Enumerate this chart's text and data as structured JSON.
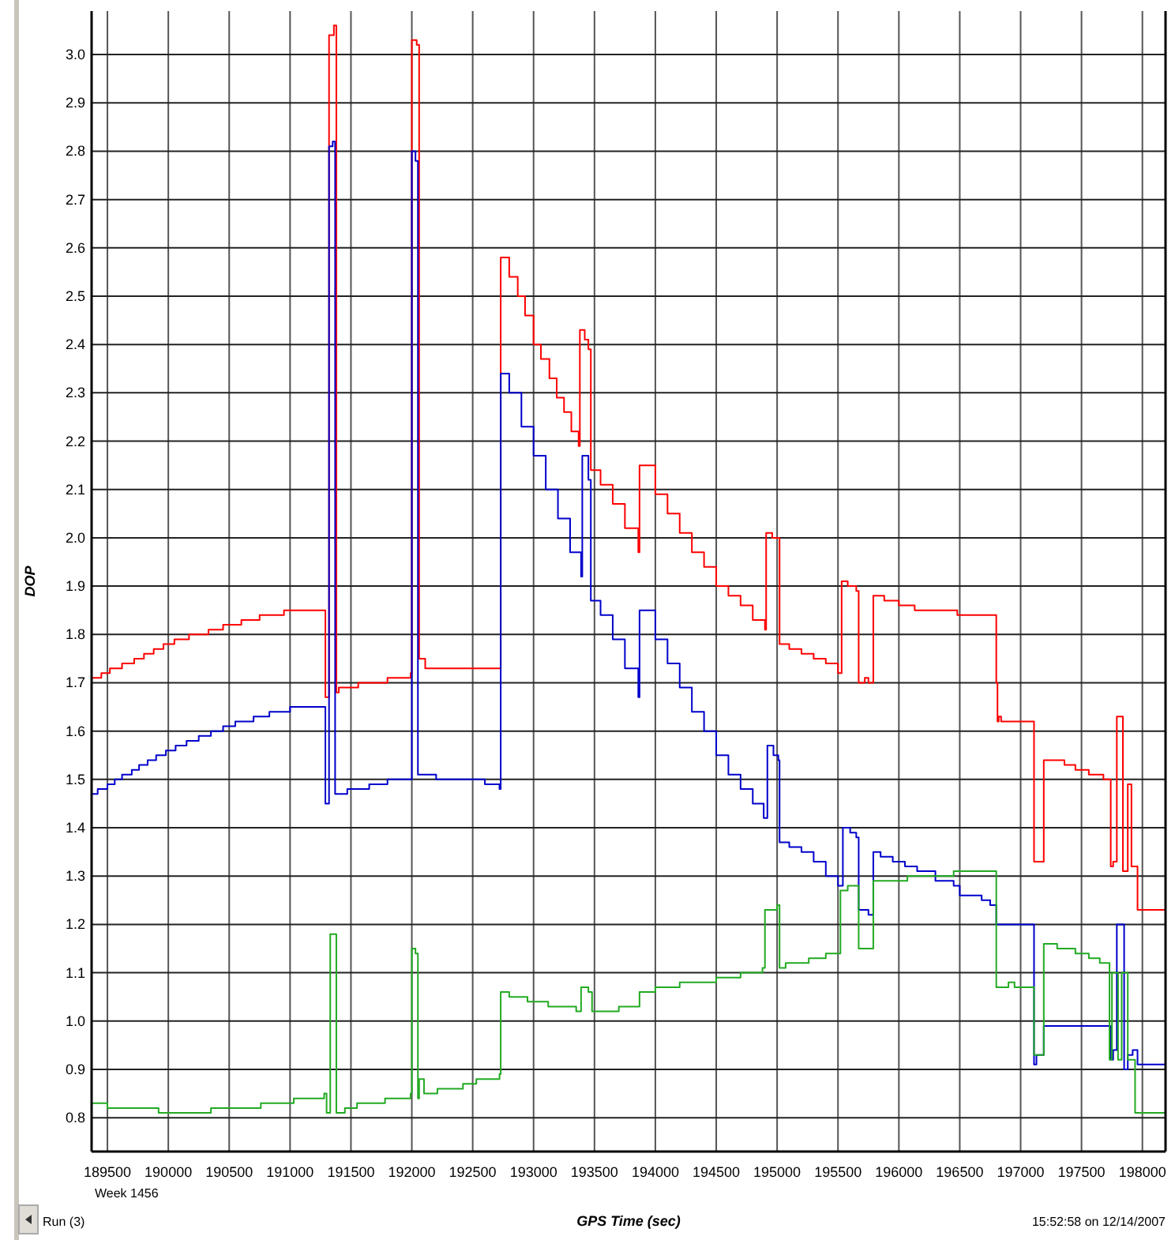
{
  "chart_data": {
    "type": "step",
    "xlabel": "GPS Time (sec)",
    "ylabel": "DOP",
    "annotations": [
      "Week 1456",
      "Run (3)",
      "15:52:58 on 12/14/2007"
    ],
    "xlim": [
      189370,
      198190
    ],
    "ylim": [
      0.73,
      3.09
    ],
    "xticks": [
      189500,
      190000,
      190500,
      191000,
      191500,
      192000,
      192500,
      193000,
      193500,
      194000,
      194500,
      195000,
      195500,
      196000,
      196500,
      197000,
      197500,
      198000
    ],
    "yticks": [
      {
        "value": 0.8,
        "label": "0.8"
      },
      {
        "value": 0.9,
        "label": "0.9"
      },
      {
        "value": 1.0,
        "label": "1.0"
      },
      {
        "value": 1.1,
        "label": "1.1"
      },
      {
        "value": 1.2,
        "label": "1.2"
      },
      {
        "value": 1.3,
        "label": "1.3"
      },
      {
        "value": 1.4,
        "label": "1.4"
      },
      {
        "value": 1.5,
        "label": "1.5"
      },
      {
        "value": 1.6,
        "label": "1.6"
      },
      {
        "value": 1.7,
        "label": "1.7"
      },
      {
        "value": 1.8,
        "label": "1.8"
      },
      {
        "value": 1.9,
        "label": "1.9"
      },
      {
        "value": 2.0,
        "label": "2.0"
      },
      {
        "value": 2.1,
        "label": "2.1"
      },
      {
        "value": 2.2,
        "label": "2.2"
      },
      {
        "value": 2.3,
        "label": "2.3"
      },
      {
        "value": 2.4,
        "label": "2.4"
      },
      {
        "value": 2.5,
        "label": "2.5"
      },
      {
        "value": 2.6,
        "label": "2.6"
      },
      {
        "value": 2.7,
        "label": "2.7"
      },
      {
        "value": 2.8,
        "label": "2.8"
      },
      {
        "value": 2.9,
        "label": "2.9"
      },
      {
        "value": 3.0,
        "label": "3.0"
      }
    ],
    "grid": true,
    "series": [
      {
        "color": "#ff0000",
        "x": [
          189370,
          189450,
          189520,
          189620,
          189720,
          189800,
          189880,
          189960,
          190050,
          190170,
          190330,
          190450,
          190600,
          190750,
          190950,
          191290,
          191320,
          191360,
          191380,
          191400,
          191560,
          191800,
          191990,
          192000,
          192040,
          192060,
          192110,
          192720,
          192730,
          192800,
          192870,
          192930,
          193000,
          193060,
          193130,
          193190,
          193250,
          193310,
          193370,
          193380,
          193420,
          193450,
          193470,
          193550,
          193650,
          193750,
          193860,
          193870,
          194000,
          194100,
          194200,
          194300,
          194400,
          194500,
          194600,
          194700,
          194800,
          194900,
          194910,
          194960,
          195020,
          195100,
          195200,
          195300,
          195400,
          195500,
          195530,
          195580,
          195650,
          195670,
          195720,
          195750,
          195790,
          195880,
          196000,
          196130,
          196480,
          196800,
          196810,
          196820,
          196840,
          197020,
          197110,
          197190,
          197360,
          197450,
          197560,
          197680,
          197740,
          197760,
          197790,
          197840,
          197880,
          197910,
          197960,
          198190
        ],
        "values": [
          1.71,
          1.72,
          1.73,
          1.74,
          1.75,
          1.76,
          1.77,
          1.78,
          1.79,
          1.8,
          1.81,
          1.82,
          1.83,
          1.84,
          1.85,
          1.67,
          3.04,
          3.06,
          1.68,
          1.69,
          1.7,
          1.71,
          1.72,
          3.03,
          3.02,
          1.75,
          1.73,
          1.73,
          2.58,
          2.54,
          2.5,
          2.46,
          2.4,
          2.37,
          2.33,
          2.29,
          2.26,
          2.22,
          2.19,
          2.43,
          2.41,
          2.39,
          2.14,
          2.11,
          2.07,
          2.02,
          1.97,
          2.15,
          2.09,
          2.05,
          2.01,
          1.97,
          1.94,
          1.9,
          1.88,
          1.86,
          1.83,
          1.81,
          2.01,
          2.0,
          1.78,
          1.77,
          1.76,
          1.75,
          1.74,
          1.72,
          1.91,
          1.9,
          1.89,
          1.7,
          1.71,
          1.7,
          1.88,
          1.87,
          1.86,
          1.85,
          1.84,
          1.7,
          1.62,
          1.63,
          1.62,
          1.62,
          1.33,
          1.54,
          1.53,
          1.52,
          1.51,
          1.5,
          1.32,
          1.33,
          1.63,
          1.31,
          1.49,
          1.32,
          1.23,
          1.23
        ]
      },
      {
        "color": "#0000cc",
        "x": [
          189370,
          189420,
          189500,
          189560,
          189620,
          189700,
          189760,
          189830,
          189900,
          189980,
          190060,
          190150,
          190250,
          190350,
          190450,
          190550,
          190700,
          190830,
          191000,
          191290,
          191320,
          191350,
          191370,
          191470,
          191650,
          191800,
          191990,
          192000,
          192030,
          192050,
          192200,
          192600,
          192720,
          192730,
          192800,
          192900,
          193000,
          193100,
          193200,
          193300,
          193390,
          193400,
          193450,
          193470,
          193550,
          193650,
          193750,
          193860,
          193870,
          194000,
          194100,
          194200,
          194300,
          194400,
          194500,
          194600,
          194700,
          194800,
          194890,
          194920,
          194970,
          195010,
          195020,
          195100,
          195200,
          195300,
          195400,
          195500,
          195540,
          195600,
          195650,
          195670,
          195750,
          195790,
          195850,
          195950,
          196050,
          196150,
          196300,
          196450,
          196500,
          196680,
          196750,
          196800,
          197110,
          197130,
          197190,
          197740,
          197760,
          197790,
          197850,
          197880,
          197920,
          197960,
          198190
        ],
        "values": [
          1.47,
          1.48,
          1.49,
          1.5,
          1.51,
          1.52,
          1.53,
          1.54,
          1.55,
          1.56,
          1.57,
          1.58,
          1.59,
          1.6,
          1.61,
          1.62,
          1.63,
          1.64,
          1.65,
          1.45,
          2.81,
          2.82,
          1.47,
          1.48,
          1.49,
          1.5,
          1.5,
          2.8,
          2.78,
          1.51,
          1.5,
          1.49,
          1.48,
          2.34,
          2.3,
          2.23,
          2.17,
          2.1,
          2.04,
          1.97,
          1.92,
          2.17,
          2.12,
          1.87,
          1.84,
          1.79,
          1.73,
          1.67,
          1.85,
          1.79,
          1.74,
          1.69,
          1.64,
          1.6,
          1.55,
          1.51,
          1.48,
          1.45,
          1.42,
          1.57,
          1.55,
          1.54,
          1.37,
          1.36,
          1.35,
          1.33,
          1.3,
          1.28,
          1.4,
          1.39,
          1.38,
          1.23,
          1.22,
          1.35,
          1.34,
          1.33,
          1.32,
          1.31,
          1.29,
          1.28,
          1.26,
          1.25,
          1.24,
          1.2,
          0.91,
          0.93,
          0.99,
          0.92,
          0.94,
          1.2,
          0.9,
          0.93,
          0.94,
          0.91,
          0.91
        ]
      },
      {
        "color": "#22aa22",
        "x": [
          189370,
          189500,
          189920,
          190350,
          190760,
          191030,
          191280,
          191300,
          191330,
          191370,
          191380,
          191450,
          191550,
          191780,
          191990,
          192000,
          192030,
          192050,
          192060,
          192100,
          192210,
          192420,
          192530,
          192720,
          192730,
          192800,
          192950,
          193120,
          193350,
          193390,
          193450,
          193480,
          193700,
          193870,
          194000,
          194200,
          194500,
          194700,
          194880,
          194900,
          195000,
          195020,
          195070,
          195260,
          195400,
          195520,
          195580,
          195670,
          195790,
          196070,
          196450,
          196800,
          196900,
          196950,
          197110,
          197190,
          197300,
          197450,
          197560,
          197650,
          197730,
          197750,
          197800,
          197830,
          197880,
          197940,
          198190
        ],
        "values": [
          0.83,
          0.82,
          0.81,
          0.82,
          0.83,
          0.84,
          0.85,
          0.81,
          1.18,
          1.18,
          0.81,
          0.82,
          0.83,
          0.84,
          0.85,
          1.15,
          1.14,
          0.84,
          0.88,
          0.85,
          0.86,
          0.87,
          0.88,
          0.89,
          1.06,
          1.05,
          1.04,
          1.03,
          1.02,
          1.07,
          1.06,
          1.02,
          1.03,
          1.06,
          1.07,
          1.08,
          1.09,
          1.1,
          1.11,
          1.23,
          1.24,
          1.11,
          1.12,
          1.13,
          1.14,
          1.27,
          1.28,
          1.15,
          1.29,
          1.3,
          1.31,
          1.07,
          1.08,
          1.07,
          0.93,
          1.16,
          1.15,
          1.14,
          1.13,
          1.12,
          0.92,
          1.1,
          0.92,
          1.1,
          0.92,
          0.81,
          0.81
        ]
      }
    ]
  }
}
